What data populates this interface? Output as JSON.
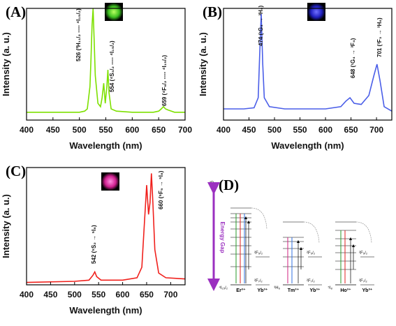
{
  "chart_data": [
    {
      "type": "line",
      "panel_label": "(A)",
      "xlabel": "Wavelength (nm)",
      "ylabel": "Intensity (a. u.)",
      "color": "#7de000",
      "xlim": [
        400,
        700
      ],
      "xticks": [
        400,
        450,
        500,
        550,
        600,
        650,
        700
      ],
      "ylim": [
        0,
        1
      ],
      "x": [
        400,
        500,
        510,
        515,
        520,
        522,
        524,
        526,
        528,
        530,
        535,
        540,
        543,
        546,
        549,
        552,
        554,
        556,
        560,
        570,
        600,
        640,
        650,
        655,
        659,
        663,
        668,
        680,
        700
      ],
      "values": [
        0.07,
        0.07,
        0.08,
        0.1,
        0.3,
        0.55,
        0.85,
        1.0,
        0.7,
        0.4,
        0.15,
        0.12,
        0.2,
        0.33,
        0.15,
        0.3,
        0.45,
        0.25,
        0.1,
        0.08,
        0.07,
        0.07,
        0.08,
        0.1,
        0.12,
        0.1,
        0.09,
        0.07,
        0.07
      ],
      "annotations": [
        "526  (²H₁₁/₂ ---- ⁴I₁₅/₂)",
        "554  (⁴S₃/₂ ---- ⁴I₁₅/₂)",
        "659  (⁴F₉/₂ ---- ⁴I₁₅/₂)"
      ]
    },
    {
      "type": "line",
      "panel_label": "(B)",
      "xlabel": "Wavelength (nm)",
      "ylabel": "Intensity (a. u.)",
      "color": "#4a5ee8",
      "xlim": [
        400,
        730
      ],
      "xticks": [
        400,
        450,
        500,
        550,
        600,
        650,
        700
      ],
      "ylim": [
        0,
        1
      ],
      "x": [
        400,
        440,
        460,
        468,
        471,
        474,
        477,
        480,
        490,
        520,
        600,
        630,
        640,
        648,
        656,
        670,
        685,
        695,
        701,
        707,
        715,
        730
      ],
      "values": [
        0.1,
        0.1,
        0.11,
        0.2,
        0.6,
        0.95,
        0.5,
        0.2,
        0.12,
        0.1,
        0.1,
        0.12,
        0.17,
        0.2,
        0.15,
        0.14,
        0.22,
        0.4,
        0.5,
        0.35,
        0.12,
        0.08
      ],
      "annotations": [
        "474  (¹G₄ → ³H₆)",
        "648  (¹G₄ → ³F₄)",
        "701  (³F₃ → ³H₆)"
      ]
    },
    {
      "type": "line",
      "panel_label": "(C)",
      "xlabel": "Wavelength (nm)",
      "ylabel": "Intensity (a. u.)",
      "color": "#f0201c",
      "xlim": [
        400,
        730
      ],
      "xticks": [
        400,
        450,
        500,
        550,
        600,
        650,
        700
      ],
      "ylim": [
        0,
        1
      ],
      "x": [
        400,
        500,
        530,
        538,
        542,
        546,
        555,
        600,
        630,
        640,
        645,
        650,
        654,
        657,
        660,
        663,
        667,
        675,
        690,
        730
      ],
      "values": [
        0.02,
        0.03,
        0.04,
        0.08,
        0.11,
        0.07,
        0.04,
        0.04,
        0.06,
        0.15,
        0.5,
        0.85,
        0.6,
        0.7,
        0.95,
        0.7,
        0.3,
        0.1,
        0.06,
        0.05
      ],
      "annotations": [
        "542  (⁵S₂ → ⁵I₈)",
        "660  (⁵F₅ → ⁵I₈)"
      ]
    }
  ],
  "diagram": {
    "panel_label": "(D)",
    "energy_gap": "Energy Gap",
    "top_level": "³P",
    "ions": [
      "Er³⁺",
      "Tm³⁺",
      "Ho³⁺"
    ],
    "sensitizer": "Yb³⁺",
    "grounds": [
      "⁴I₁₅/₂",
      "³H₆",
      "⁵I₈"
    ],
    "yb_levels": [
      "²F₅/₂",
      "²F₇/₂"
    ]
  }
}
